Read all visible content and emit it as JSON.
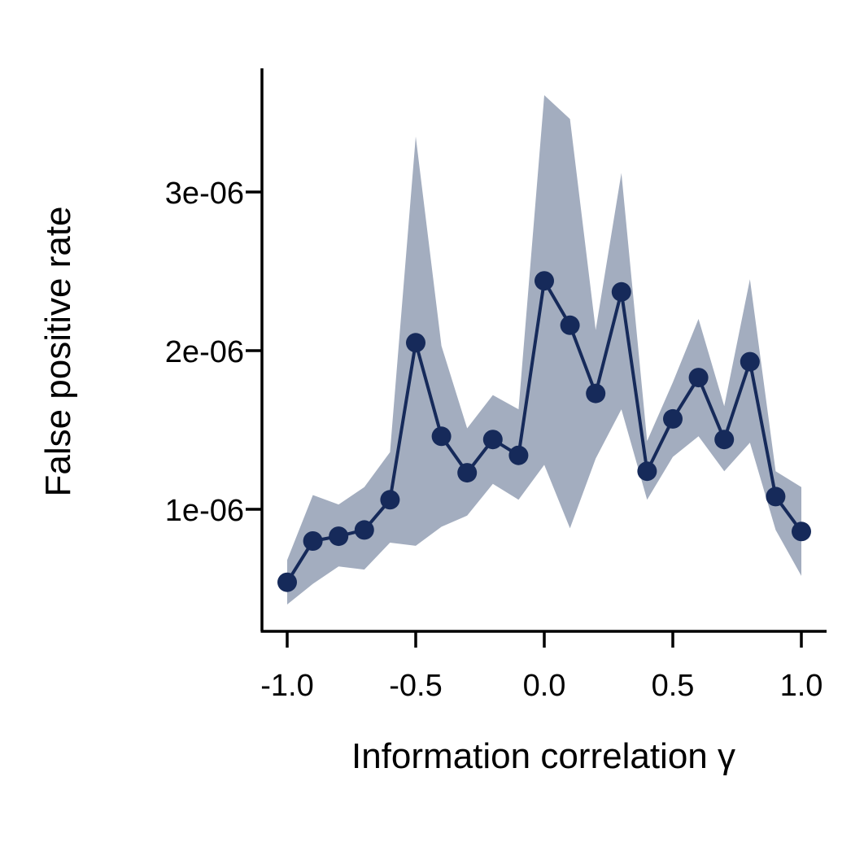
{
  "chart_data": {
    "type": "line",
    "title": "",
    "xlabel": "Information correlation γ",
    "ylabel": "False positive rate",
    "xlim": [
      -1.1,
      1.1
    ],
    "ylim": [
      3.2e-07,
      3.8e-06
    ],
    "grid": false,
    "legend": "none",
    "colors": {
      "line": "#162a5a",
      "band": "#a3adbf"
    },
    "x_ticks": [
      {
        "value": -1.0,
        "label": "-1.0"
      },
      {
        "value": -0.5,
        "label": "-0.5"
      },
      {
        "value": 0.0,
        "label": "0.0"
      },
      {
        "value": 0.5,
        "label": "0.5"
      },
      {
        "value": 1.0,
        "label": "1.0"
      }
    ],
    "y_ticks": [
      {
        "value": 1e-06,
        "label": "1e-06"
      },
      {
        "value": 2e-06,
        "label": "2e-06"
      },
      {
        "value": 3e-06,
        "label": "3e-06"
      }
    ],
    "series": [
      {
        "x": [
          -1.0,
          -0.9,
          -0.8,
          -0.7,
          -0.6,
          -0.5,
          -0.4,
          -0.3,
          -0.2,
          -0.1,
          0.0,
          0.1,
          0.2,
          0.3,
          0.4,
          0.5,
          0.6,
          0.7,
          0.8,
          0.9,
          1.0
        ],
        "values": [
          5.4e-07,
          8e-07,
          8.3e-07,
          8.7e-07,
          1.06e-06,
          2.05e-06,
          1.46e-06,
          1.23e-06,
          1.44e-06,
          1.34e-06,
          2.44e-06,
          2.16e-06,
          1.73e-06,
          2.37e-06,
          1.24e-06,
          1.57e-06,
          1.83e-06,
          1.44e-06,
          1.93e-06,
          1.08e-06,
          8.6e-07
        ],
        "lower": [
          4e-07,
          5.3e-07,
          6.4e-07,
          6.2e-07,
          7.9e-07,
          7.7e-07,
          8.9e-07,
          9.6e-07,
          1.16e-06,
          1.06e-06,
          1.28e-06,
          8.8e-07,
          1.32e-06,
          1.63e-06,
          1.06e-06,
          1.33e-06,
          1.46e-06,
          1.24e-06,
          1.42e-06,
          8.7e-07,
          5.8e-07
        ],
        "upper": [
          6.8e-07,
          1.09e-06,
          1.03e-06,
          1.14e-06,
          1.36e-06,
          3.35e-06,
          2.03e-06,
          1.51e-06,
          1.72e-06,
          1.63e-06,
          3.61e-06,
          3.46e-06,
          2.13e-06,
          3.12e-06,
          1.43e-06,
          1.8e-06,
          2.2e-06,
          1.65e-06,
          2.45e-06,
          1.24e-06,
          1.14e-06
        ]
      }
    ]
  }
}
